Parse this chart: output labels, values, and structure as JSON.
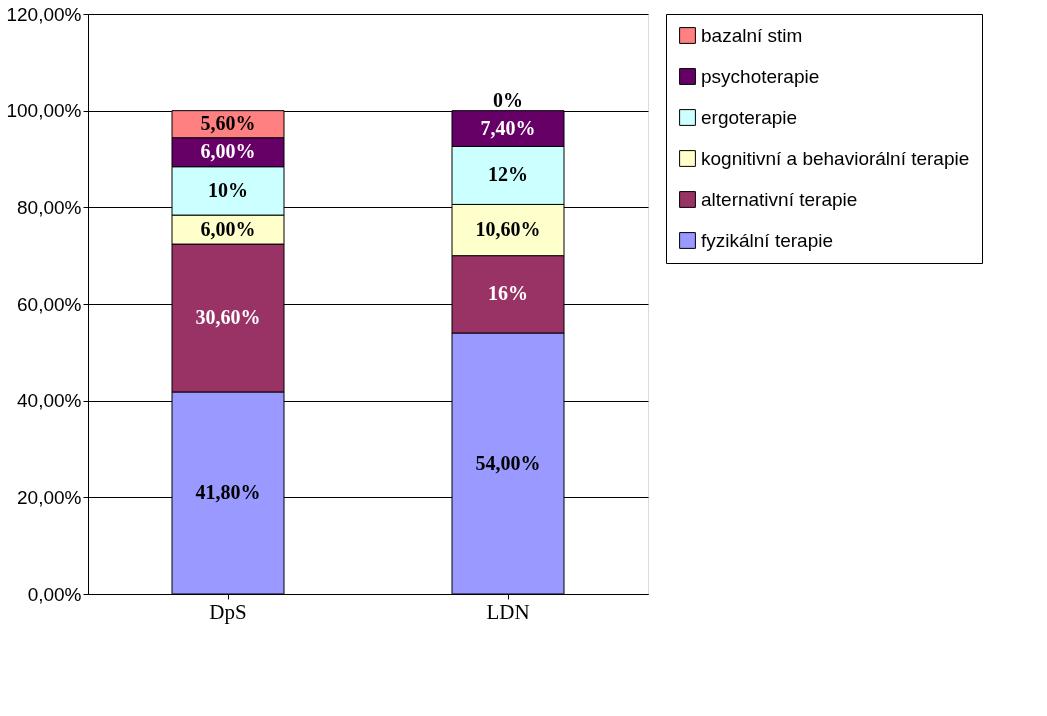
{
  "chart_data": {
    "type": "bar",
    "stacked": true,
    "categories": [
      "DpS",
      "LDN"
    ],
    "series": [
      {
        "name": "fyzikální terapie",
        "color": "#9999ff",
        "values": [
          41.8,
          54.0
        ],
        "value_labels": [
          "41,80%",
          "54,00%"
        ]
      },
      {
        "name": "alternativní terapie",
        "color": "#993366",
        "values": [
          30.6,
          16
        ],
        "value_labels": [
          "30,60%",
          "16%"
        ]
      },
      {
        "name": "kognitivní a behaviorální terapie",
        "color": "#ffffcc",
        "values": [
          6.0,
          10.6
        ],
        "value_labels": [
          "6,00%",
          "10,60%"
        ]
      },
      {
        "name": "ergoterapie",
        "color": "#ccffff",
        "values": [
          10,
          12
        ],
        "value_labels": [
          "10%",
          "12%"
        ]
      },
      {
        "name": "psychoterapie",
        "color": "#660066",
        "values": [
          6.0,
          7.4
        ],
        "value_labels": [
          "6,00%",
          "7,40%"
        ]
      },
      {
        "name": "bazalní stim",
        "color": "#ff8080",
        "values": [
          5.6,
          0
        ],
        "value_labels": [
          "5,60%",
          "0%"
        ]
      }
    ],
    "ylim": [
      0,
      120
    ],
    "yticks": [
      {
        "value": 0,
        "label": "0,00%"
      },
      {
        "value": 20,
        "label": "20,00%"
      },
      {
        "value": 40,
        "label": "40,00%"
      },
      {
        "value": 60,
        "label": "60,00%"
      },
      {
        "value": 80,
        "label": "80,00%"
      },
      {
        "value": 100,
        "label": "100,00%"
      },
      {
        "value": 120,
        "label": "120,00%"
      }
    ],
    "grid": "y",
    "legend": "right"
  }
}
